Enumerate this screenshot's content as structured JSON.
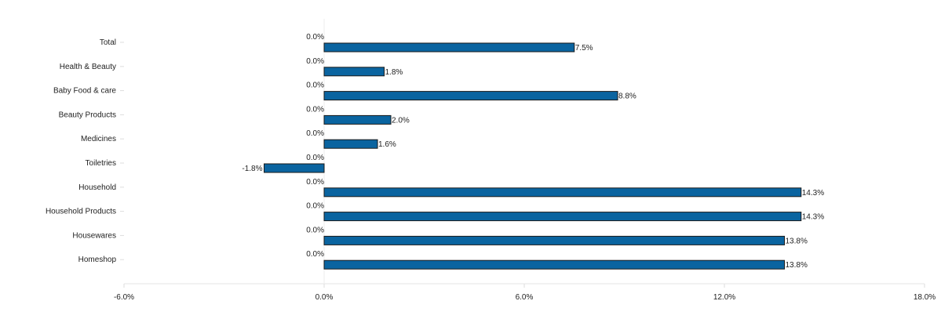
{
  "chart_data": {
    "type": "bar",
    "orientation": "horizontal",
    "categories": [
      "Total",
      "Health & Beauty",
      "Baby Food & care",
      "Beauty Products",
      "Medicines",
      "Toiletries",
      "Household",
      "Household Products",
      "Housewares",
      "Homeshop"
    ],
    "series": [
      {
        "values": [
          0.0,
          0.0,
          0.0,
          0.0,
          0.0,
          0.0,
          0.0,
          0.0,
          0.0,
          0.0
        ],
        "labels": [
          "0.0%",
          "0.0%",
          "0.0%",
          "0.0%",
          "0.0%",
          "0.0%",
          "0.0%",
          "0.0%",
          "0.0%",
          "0.0%"
        ]
      },
      {
        "values": [
          7.5,
          1.8,
          8.8,
          2.0,
          1.6,
          -1.8,
          14.3,
          14.3,
          13.8,
          13.8
        ],
        "labels": [
          "7.5%",
          "1.8%",
          "8.8%",
          "2.0%",
          "1.6%",
          "-1.8%",
          "14.3%",
          "14.3%",
          "13.8%",
          "13.8%"
        ],
        "color": "#0a64a0"
      }
    ],
    "xlim": [
      -6.0,
      18.0
    ],
    "xticks": [
      -6.0,
      0.0,
      6.0,
      12.0,
      18.0
    ],
    "xtick_labels": [
      "-6.0%",
      "0.0%",
      "6.0%",
      "12.0%",
      "18.0%"
    ],
    "grid": false,
    "legend": "none"
  }
}
